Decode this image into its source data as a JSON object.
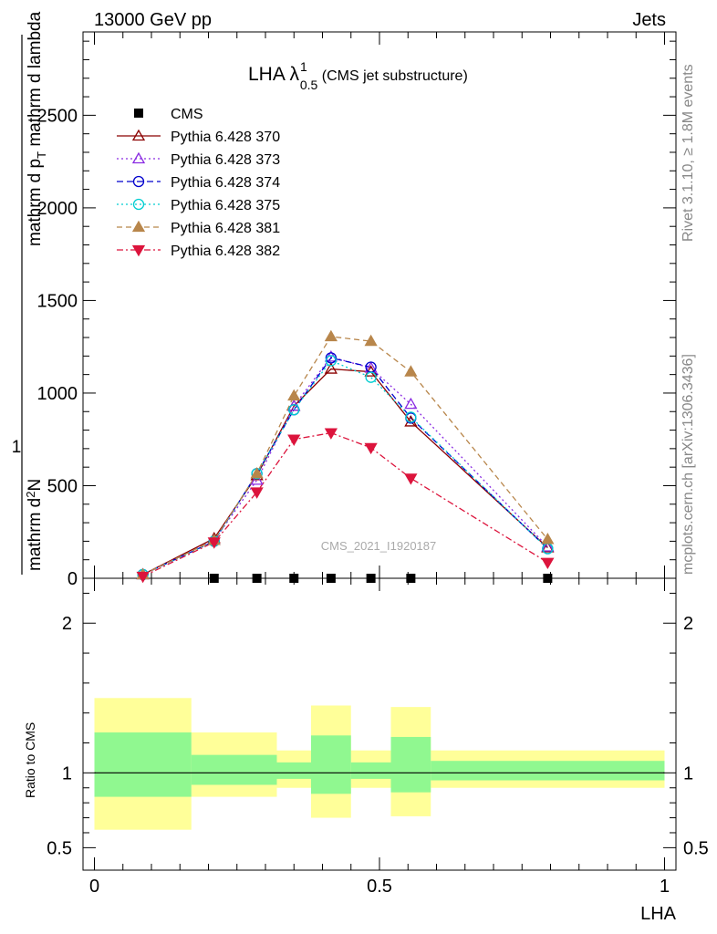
{
  "header": {
    "left": "13000 GeV pp",
    "right": "Jets"
  },
  "side_labels": {
    "rivet": "Rivet 3.1.10, ≥ 1.8M events",
    "mcplots": "mcplots.cern.ch [arXiv:1306.3436]"
  },
  "plot_title": {
    "main": "LHA λ",
    "sup": "1",
    "sub": "0.5",
    "suffix": " (CMS jet substructure)"
  },
  "watermark": "CMS_2021_I1920187",
  "y_axis_label": {
    "frac_top": "1",
    "frac_bottom": "mathrm d N / mathrm d p",
    "frac_bottom_sub": "T",
    "frac_bottom_rest": " mathrm d p",
    "frac_bottom_tail": "mathrm d p",
    "top_num": "mathrm d",
    "top_num_sup": "2",
    "top_num_tail": "N",
    "top_den": "mathrm d p",
    "top_den_sub": "T",
    "top_den_tail": " mathrm d lambda"
  },
  "x_axis_label": "LHA",
  "ratio_label": "Ratio to CMS",
  "colors": {
    "green_band": "#90f890",
    "yellow_band": "#ffff99",
    "s370": "#8b0000",
    "s373": "#8a2be2",
    "s374": "#0000cd",
    "s375": "#00ced1",
    "s381": "#b8864b",
    "s382": "#dc143c"
  },
  "chart_data": {
    "type": "line",
    "main": {
      "xlim": [
        -0.02,
        1.02
      ],
      "ylim": [
        0,
        2950
      ],
      "y_ticks": [
        0,
        500,
        1000,
        1500,
        2000,
        2500
      ],
      "y_tick_labels": [
        "0",
        "500",
        "1000",
        "1500",
        "2000",
        "2500"
      ],
      "x": [
        0.085,
        0.21,
        0.285,
        0.35,
        0.415,
        0.485,
        0.555,
        0.795
      ]
    },
    "data_series": {
      "name": "CMS",
      "x": [
        0.21,
        0.285,
        0.35,
        0.415,
        0.485,
        0.555,
        0.795
      ],
      "values": [
        0,
        0,
        0,
        0,
        0,
        0,
        0
      ]
    },
    "series": [
      {
        "name": "Pythia 6.428 370",
        "color_key": "s370",
        "marker": "triangle-up-open",
        "dash": "",
        "values": [
          20,
          215,
          555,
          930,
          1130,
          1115,
          845,
          165
        ]
      },
      {
        "name": "Pythia 6.428 373",
        "color_key": "s373",
        "marker": "triangle-up-open",
        "dash": "2,3",
        "values": [
          20,
          205,
          530,
          930,
          1195,
          1135,
          940,
          170
        ]
      },
      {
        "name": "Pythia 6.428 374",
        "color_key": "s374",
        "marker": "circle-open",
        "dash": "7,4",
        "values": [
          20,
          200,
          565,
          910,
          1190,
          1140,
          865,
          160
        ]
      },
      {
        "name": "Pythia 6.428 375",
        "color_key": "s375",
        "marker": "circle-open",
        "dash": "2,3",
        "values": [
          20,
          200,
          565,
          910,
          1175,
          1085,
          870,
          160
        ]
      },
      {
        "name": "Pythia 6.428 381",
        "color_key": "s381",
        "marker": "triangle-up-filled",
        "dash": "6,4",
        "values": [
          20,
          205,
          565,
          985,
          1305,
          1280,
          1115,
          210
        ]
      },
      {
        "name": "Pythia 6.428 382",
        "color_key": "s382",
        "marker": "triangle-down-filled",
        "dash": "7,3,2,3",
        "values": [
          10,
          195,
          465,
          750,
          785,
          705,
          540,
          85
        ]
      }
    ],
    "ratio": {
      "ylabel": "Ratio to CMS",
      "ylim": [
        0.35,
        2.3
      ],
      "y_ticks": [
        0.5,
        1,
        2
      ],
      "y_tick_labels": [
        "0.5",
        "1",
        "2"
      ],
      "bins": [
        {
          "lo": 0.0,
          "hi": 0.17,
          "green": [
            0.84,
            1.27
          ],
          "yellow": [
            0.62,
            1.5
          ]
        },
        {
          "lo": 0.17,
          "hi": 0.32,
          "green": [
            0.92,
            1.12
          ],
          "yellow": [
            0.84,
            1.27
          ]
        },
        {
          "lo": 0.32,
          "hi": 0.38,
          "green": [
            0.96,
            1.07
          ],
          "yellow": [
            0.9,
            1.15
          ]
        },
        {
          "lo": 0.38,
          "hi": 0.45,
          "green": [
            0.86,
            1.25
          ],
          "yellow": [
            0.7,
            1.45
          ]
        },
        {
          "lo": 0.45,
          "hi": 0.52,
          "green": [
            0.96,
            1.07
          ],
          "yellow": [
            0.9,
            1.15
          ]
        },
        {
          "lo": 0.52,
          "hi": 0.59,
          "green": [
            0.87,
            1.24
          ],
          "yellow": [
            0.71,
            1.44
          ]
        },
        {
          "lo": 0.59,
          "hi": 1.0,
          "green": [
            0.95,
            1.08
          ],
          "yellow": [
            0.9,
            1.15
          ]
        }
      ]
    },
    "x_ticks": [
      0,
      0.5,
      1
    ],
    "x_tick_labels": [
      "0",
      "0.5",
      "1"
    ],
    "legend_placement": "top-left"
  }
}
